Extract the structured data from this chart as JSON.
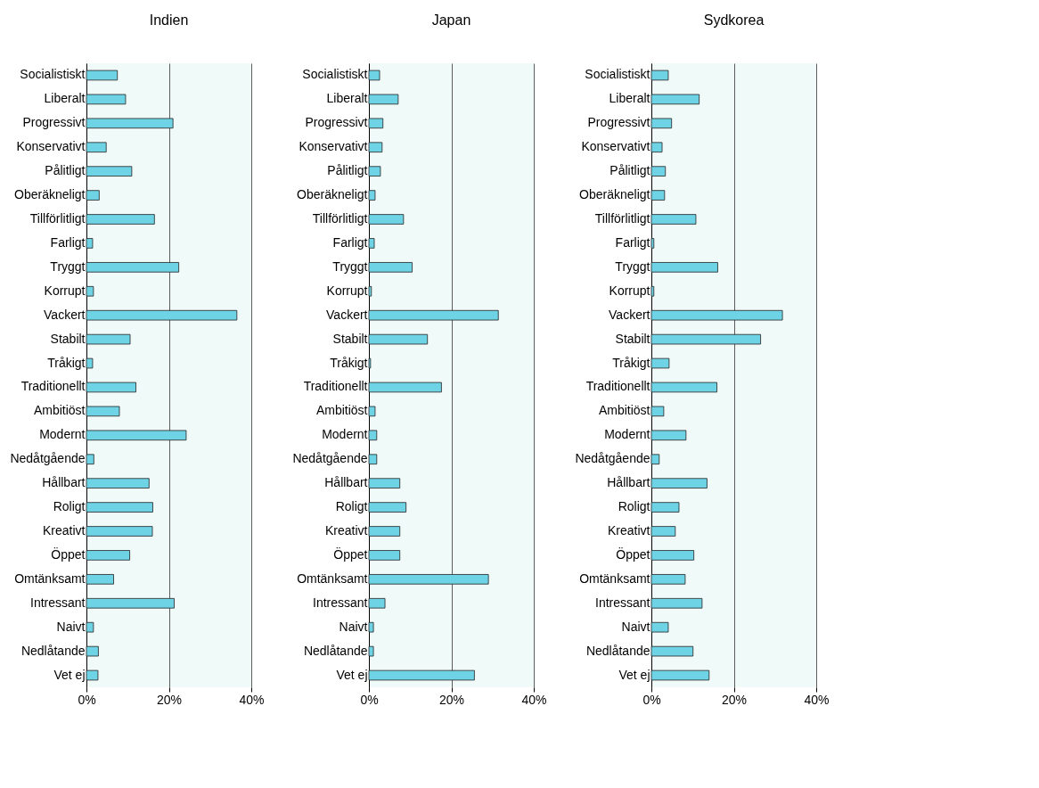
{
  "chart_data": [
    {
      "type": "bar",
      "orientation": "horizontal",
      "title": "Indien",
      "categories": [
        "Socialistiskt",
        "Liberalt",
        "Progressivt",
        "Konservativt",
        "Pålitligt",
        "Oberäkneligt",
        "Tillförlitligt",
        "Farligt",
        "Tryggt",
        "Korrupt",
        "Vackert",
        "Stabilt",
        "Tråkigt",
        "Traditionellt",
        "Ambitiöst",
        "Modernt",
        "Nedåtgående",
        "Hållbart",
        "Roligt",
        "Kreativt",
        "Öppet",
        "Omtänksamt",
        "Intressant",
        "Naivt",
        "Nedlåtande",
        "Vet ej"
      ],
      "values": [
        7.5,
        9.5,
        21,
        4.8,
        11,
        3.1,
        16.5,
        1.5,
        22.4,
        1.7,
        36.5,
        10.6,
        1.5,
        12,
        8,
        24.2,
        1.8,
        15.2,
        16.1,
        16,
        10.5,
        6.6,
        21.3,
        1.7,
        2.9,
        2.8
      ],
      "color": "#6fd3e6",
      "xlim": [
        0,
        40
      ],
      "xticks": [
        {
          "value": 0,
          "label": "0%"
        },
        {
          "value": 20,
          "label": "20%"
        },
        {
          "value": 40,
          "label": "40%"
        }
      ],
      "grid": "x"
    },
    {
      "type": "bar",
      "orientation": "horizontal",
      "title": "Japan",
      "categories": [
        "Socialistiskt",
        "Liberalt",
        "Progressivt",
        "Konservativt",
        "Pålitligt",
        "Oberäkneligt",
        "Tillförlitligt",
        "Farligt",
        "Tryggt",
        "Korrupt",
        "Vackert",
        "Stabilt",
        "Tråkigt",
        "Traditionellt",
        "Ambitiöst",
        "Modernt",
        "Nedåtgående",
        "Hållbart",
        "Roligt",
        "Kreativt",
        "Öppet",
        "Omtänksamt",
        "Intressant",
        "Naivt",
        "Nedlåtande",
        "Vet ej"
      ],
      "values": [
        2.6,
        7.1,
        3.4,
        3.2,
        2.8,
        1.5,
        8.4,
        1.3,
        10.5,
        0.6,
        31.4,
        14.2,
        0.4,
        17.6,
        1.5,
        1.9,
        1.9,
        7.5,
        9,
        7.5,
        7.5,
        29,
        3.9,
        1.1,
        1.1,
        25.6
      ],
      "color": "#6fd3e6",
      "xlim": [
        0,
        40
      ],
      "xticks": [
        {
          "value": 0,
          "label": "0%"
        },
        {
          "value": 20,
          "label": "20%"
        },
        {
          "value": 40,
          "label": "40%"
        }
      ],
      "grid": "x"
    },
    {
      "type": "bar",
      "orientation": "horizontal",
      "title": "Sydkorea",
      "categories": [
        "Socialistiskt",
        "Liberalt",
        "Progressivt",
        "Konservativt",
        "Pålitligt",
        "Oberäkneligt",
        "Tillförlitligt",
        "Farligt",
        "Tryggt",
        "Korrupt",
        "Vackert",
        "Stabilt",
        "Tråkigt",
        "Traditionellt",
        "Ambitiöst",
        "Modernt",
        "Nedåtgående",
        "Hållbart",
        "Roligt",
        "Kreativt",
        "Öppet",
        "Omtänksamt",
        "Intressant",
        "Naivt",
        "Nedlåtande",
        "Vet ej"
      ],
      "values": [
        4.1,
        11.6,
        4.9,
        2.6,
        3.4,
        3.2,
        10.8,
        0.6,
        16.1,
        0.6,
        31.8,
        26.5,
        4.3,
        15.9,
        3,
        8.4,
        1.9,
        13.5,
        6.7,
        5.8,
        10.3,
        8.2,
        12.3,
        4.1,
        10.1,
        14
      ],
      "color": "#6fd3e6",
      "xlim": [
        0,
        40
      ],
      "xticks": [
        {
          "value": 0,
          "label": "0%"
        },
        {
          "value": 20,
          "label": "20%"
        },
        {
          "value": 40,
          "label": "40%"
        }
      ],
      "grid": "x"
    }
  ]
}
